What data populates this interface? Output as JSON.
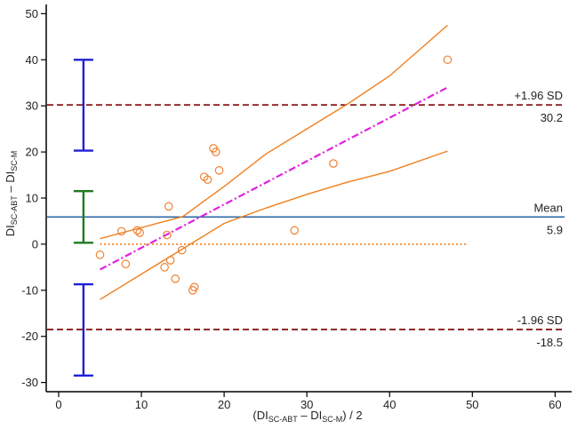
{
  "chart_data": {
    "type": "scatter",
    "title": "",
    "xlabel": {
      "open": "(DI",
      "sub1": "SC-ABT",
      "mid": " – DI",
      "sub2": "SC-M",
      "close": ") / 2"
    },
    "ylabel": {
      "pre1": "DI",
      "sub1": "SC-ABT",
      "mid": " – DI",
      "sub2": "SC-M"
    },
    "xlim": [
      -1.5,
      62
    ],
    "ylim": [
      -32,
      52
    ],
    "xticks": [
      0,
      10,
      20,
      30,
      40,
      50,
      60
    ],
    "yticks": [
      -30,
      -20,
      -10,
      0,
      10,
      20,
      30,
      40,
      50
    ],
    "grid": false,
    "points": [
      [
        5.0,
        -2.3
      ],
      [
        7.6,
        2.8
      ],
      [
        8.1,
        -4.3
      ],
      [
        9.5,
        3.0
      ],
      [
        9.8,
        2.5
      ],
      [
        12.8,
        -5.0
      ],
      [
        13.1,
        2.0
      ],
      [
        13.3,
        8.2
      ],
      [
        13.5,
        -3.5
      ],
      [
        14.1,
        -7.5
      ],
      [
        14.9,
        -1.3
      ],
      [
        16.2,
        -10.0
      ],
      [
        16.4,
        -9.3
      ],
      [
        17.6,
        14.6
      ],
      [
        18.0,
        14.0
      ],
      [
        18.7,
        20.8
      ],
      [
        19.0,
        20.0
      ],
      [
        19.4,
        16.0
      ],
      [
        28.5,
        3.0
      ],
      [
        33.2,
        17.5
      ],
      [
        47.0,
        40.0
      ]
    ],
    "mean": {
      "value": 5.9,
      "label": "Mean",
      "value_text": "5.9",
      "color": "#2e6aa8"
    },
    "upper_loa": {
      "value": 30.2,
      "label": "+1.96 SD",
      "value_text": "30.2",
      "color": "#8b1a1a"
    },
    "lower_loa": {
      "value": -18.5,
      "label": "-1.96 SD",
      "value_text": "-18.5",
      "color": "#8b1a1a"
    },
    "zero_line": {
      "value": 0,
      "x_range": [
        5,
        49.5
      ],
      "color": "#f07f1e"
    },
    "regression": {
      "x": [
        5,
        47
      ],
      "y": [
        -5.5,
        34
      ],
      "color": "#e020e0"
    },
    "ci_upper": [
      [
        5,
        1.2
      ],
      [
        15,
        6.0
      ],
      [
        20,
        12.5
      ],
      [
        25,
        19.5
      ],
      [
        30,
        25.0
      ],
      [
        35,
        30.5
      ],
      [
        40,
        36.5
      ],
      [
        47,
        47.5
      ]
    ],
    "ci_lower": [
      [
        5,
        -12.0
      ],
      [
        10,
        -6.5
      ],
      [
        15,
        -1.0
      ],
      [
        20,
        4.5
      ],
      [
        25,
        7.8
      ],
      [
        30,
        10.8
      ],
      [
        35,
        13.5
      ],
      [
        40,
        15.8
      ],
      [
        47,
        20.2
      ]
    ],
    "ci_bars": [
      {
        "x": 3,
        "low": 20.3,
        "high": 40.0,
        "color": "#1f1fd6"
      },
      {
        "x": 3,
        "low": 0.3,
        "high": 11.5,
        "color": "#1e7a1e"
      },
      {
        "x": 3,
        "low": -28.5,
        "high": -8.7,
        "color": "#1f1fd6"
      }
    ],
    "point_color": "#f08030",
    "ci_line_color": "#f07f1e"
  }
}
